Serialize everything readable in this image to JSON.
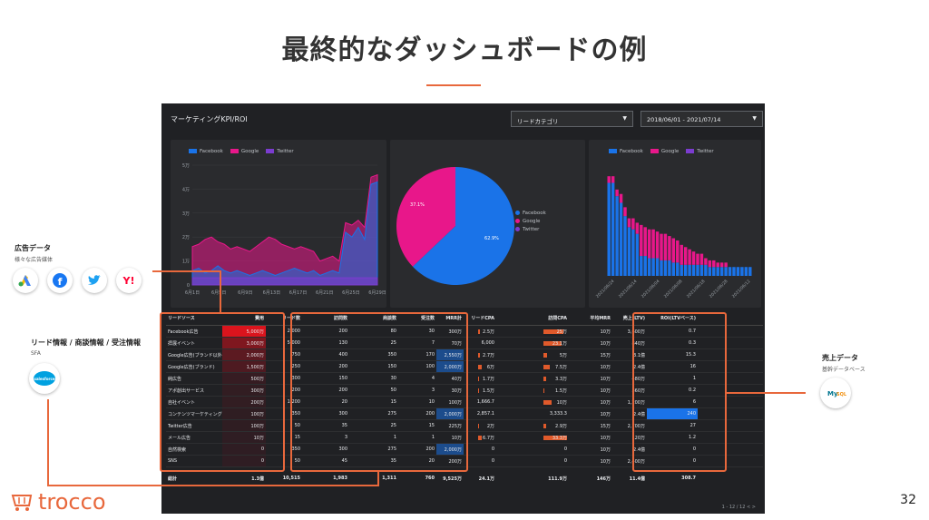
{
  "slide": {
    "title": "最終的なダッシュボードの例",
    "page_number": "32",
    "logo_text": "trocco"
  },
  "dashboard": {
    "title": "マーケティングKPI/ROI",
    "filter_label": "リードカテゴリ",
    "date_range": "2018/06/01 - 2021/07/14",
    "pager": "1 - 12 / 12"
  },
  "legend": {
    "facebook": "Facebook",
    "google": "Google",
    "twitter": "Twitter"
  },
  "colors": {
    "facebook": "#1a73e8",
    "google": "#e8178a",
    "twitter": "#7b3ccf",
    "accent": "#e8683c"
  },
  "chart_data": [
    {
      "type": "area",
      "series": [
        {
          "name": "Facebook",
          "values": [
            0.6,
            0.7,
            0.5,
            0.6,
            0.8,
            0.6,
            0.5,
            0.6,
            0.5,
            0.4,
            0.5,
            0.6,
            0.5,
            0.4,
            0.5,
            0.6,
            0.7,
            0.6,
            0.5,
            0.6,
            0.4,
            0.5,
            0.6,
            0.5,
            2.2,
            2.0,
            2.4,
            1.9,
            4.2,
            4.3
          ]
        },
        {
          "name": "Google",
          "values": [
            1.6,
            1.7,
            1.9,
            2.0,
            1.8,
            1.7,
            1.5,
            1.6,
            1.5,
            1.4,
            1.6,
            1.8,
            2.0,
            1.9,
            1.7,
            1.6,
            1.5,
            1.6,
            1.5,
            1.4,
            1.0,
            1.1,
            1.2,
            1.0,
            2.6,
            2.5,
            2.7,
            2.4,
            4.5,
            4.6
          ]
        },
        {
          "name": "Twitter",
          "values": [
            0.3,
            0.3,
            0.3,
            0.3,
            0.3,
            0.3,
            0.3,
            0.3,
            0.3,
            0.3,
            0.3,
            0.3,
            0.3,
            0.3,
            0.3,
            0.3,
            0.3,
            0.3,
            0.3,
            0.3,
            0.3,
            0.3,
            0.3,
            0.3,
            0.3,
            0.3,
            0.3,
            0.3,
            0.3,
            0.3
          ]
        }
      ],
      "x_ticks": [
        "6月1日",
        "6月5日",
        "6月9日",
        "6月13日",
        "6月17日",
        "6月21日",
        "6月25日",
        "6月29日"
      ],
      "y_ticks": [
        "0",
        "1万",
        "2万",
        "3万",
        "4万",
        "5万"
      ],
      "ylim": [
        0,
        5
      ]
    },
    {
      "type": "pie",
      "slices": [
        {
          "name": "Facebook",
          "value": 62.9,
          "label": "62.9%"
        },
        {
          "name": "Google",
          "value": 37.1,
          "label": "37.1%"
        },
        {
          "name": "Twitter",
          "value": 0
        }
      ]
    },
    {
      "type": "bar",
      "stacked": true,
      "series": [
        {
          "name": "Facebook",
          "values": [
            4.2,
            4.2,
            3.6,
            3.3,
            2.7,
            2.2,
            2.1,
            1.9,
            0.9,
            0.9,
            0.8,
            0.8,
            0.8,
            0.7,
            0.7,
            0.7,
            0.6,
            0.6,
            0.5,
            0.5,
            0.5,
            0.5,
            0.5,
            0.5,
            0.5,
            0.4,
            0.4,
            0.4,
            0.4,
            0.4,
            0.4,
            0.4,
            0.4,
            0.4,
            0.4,
            0.4
          ]
        },
        {
          "name": "Google",
          "values": [
            0.3,
            0.3,
            0.3,
            0.4,
            0.4,
            0.4,
            0.5,
            0.5,
            1.4,
            1.3,
            1.3,
            1.3,
            1.2,
            1.2,
            1.2,
            1.1,
            1.1,
            1.0,
            0.9,
            0.8,
            0.7,
            0.6,
            0.5,
            0.5,
            0.3,
            0.3,
            0.3,
            0.2,
            0.2,
            0.2,
            0,
            0,
            0,
            0,
            0,
            0
          ]
        },
        {
          "name": "Twitter",
          "values": [
            0,
            0,
            0,
            0,
            0,
            0,
            0,
            0,
            0,
            0,
            0,
            0,
            0,
            0,
            0,
            0,
            0,
            0,
            0,
            0,
            0,
            0,
            0,
            0,
            0,
            0,
            0,
            0,
            0,
            0,
            0,
            0,
            0,
            0,
            0,
            0
          ]
        }
      ],
      "x_ticks": [
        "2021/06/24",
        "2021/06/14",
        "2021/06/04",
        "2021/06/08",
        "2021/06/18",
        "2021/06/28",
        "2021/06/12"
      ],
      "ylim": [
        0,
        5
      ]
    }
  ],
  "table": {
    "headers": [
      "リードソース",
      "費用",
      "リード数",
      "訪問数",
      "商談数",
      "受注数",
      "MRR計",
      "リードCPA",
      "訪問CPA",
      "平均MRR",
      "売上(LTV)",
      "ROI(LTVベース)"
    ],
    "rows": [
      [
        "Facebook広告",
        "5,000万",
        "2,000",
        "200",
        "80",
        "30",
        "300万",
        "2.5万",
        "25万",
        "10万",
        "3,600万",
        "0.7"
      ],
      [
        "拝展イベント",
        "3,000万",
        "5,000",
        "130",
        "25",
        "7",
        "70万",
        "6,000",
        "23.1万",
        "10万",
        "840万",
        "0.3"
      ],
      [
        "Google広告(ブランド以外)",
        "2,000万",
        "750",
        "400",
        "350",
        "170",
        "2,550万",
        "2.7万",
        "5万",
        "15万",
        "3.1億",
        "15.3"
      ],
      [
        "Google広告(ブランド)",
        "1,500万",
        "250",
        "200",
        "150",
        "100",
        "2,000万",
        "6万",
        "7.5万",
        "10万",
        "2.4億",
        "16"
      ],
      [
        "純広告",
        "500万",
        "300",
        "150",
        "30",
        "4",
        "40万",
        "1.7万",
        "3.3万",
        "10万",
        "480万",
        "1"
      ],
      [
        "アポ創出サービス",
        "300万",
        "200",
        "200",
        "50",
        "3",
        "30万",
        "1.5万",
        "1.5万",
        "10万",
        "360万",
        "0.2"
      ],
      [
        "自社イベント",
        "200万",
        "1,200",
        "20",
        "15",
        "10",
        "100万",
        "1,666.7",
        "10万",
        "10万",
        "1,200万",
        "6"
      ],
      [
        "コンテンツマーケティング",
        "100万",
        "350",
        "300",
        "275",
        "200",
        "2,000万",
        "2,857.1",
        "3,333.3",
        "10万",
        "2.4億",
        "240"
      ],
      [
        "Twitter広告",
        "100万",
        "50",
        "35",
        "25",
        "15",
        "225万",
        "2万",
        "2.9万",
        "15万",
        "2,700万",
        "27"
      ],
      [
        "メール広告",
        "10万",
        "15",
        "3",
        "1",
        "1",
        "10万",
        "6.7万",
        "33.3万",
        "10万",
        "120万",
        "1.2"
      ],
      [
        "自然検索",
        "0",
        "350",
        "300",
        "275",
        "200",
        "2,000万",
        "0",
        "0",
        "10万",
        "2.4億",
        "0"
      ],
      [
        "SNS",
        "0",
        "50",
        "45",
        "35",
        "20",
        "200万",
        "0",
        "0",
        "10万",
        "2,400万",
        "0"
      ]
    ],
    "total": [
      "総計",
      "1.3億",
      "10,515",
      "1,983",
      "1,311",
      "760",
      "9,525万",
      "24.1万",
      "111.9万",
      "146万",
      "11.4億",
      "308.7"
    ],
    "cpa_axis": [
      "0",
      "5万",
      "10万"
    ]
  },
  "callouts": {
    "ad_data_title": "広告データ",
    "ad_data_sub": "様々な広告媒体",
    "lead_title": "リード情報 / 商談情報 / 受注情報",
    "lead_sub": "SFA",
    "sales_title": "売上データ",
    "sales_sub": "基幹データベース",
    "icons": [
      "google-ads",
      "facebook",
      "twitter",
      "yahoo",
      "salesforce",
      "mysql"
    ]
  }
}
